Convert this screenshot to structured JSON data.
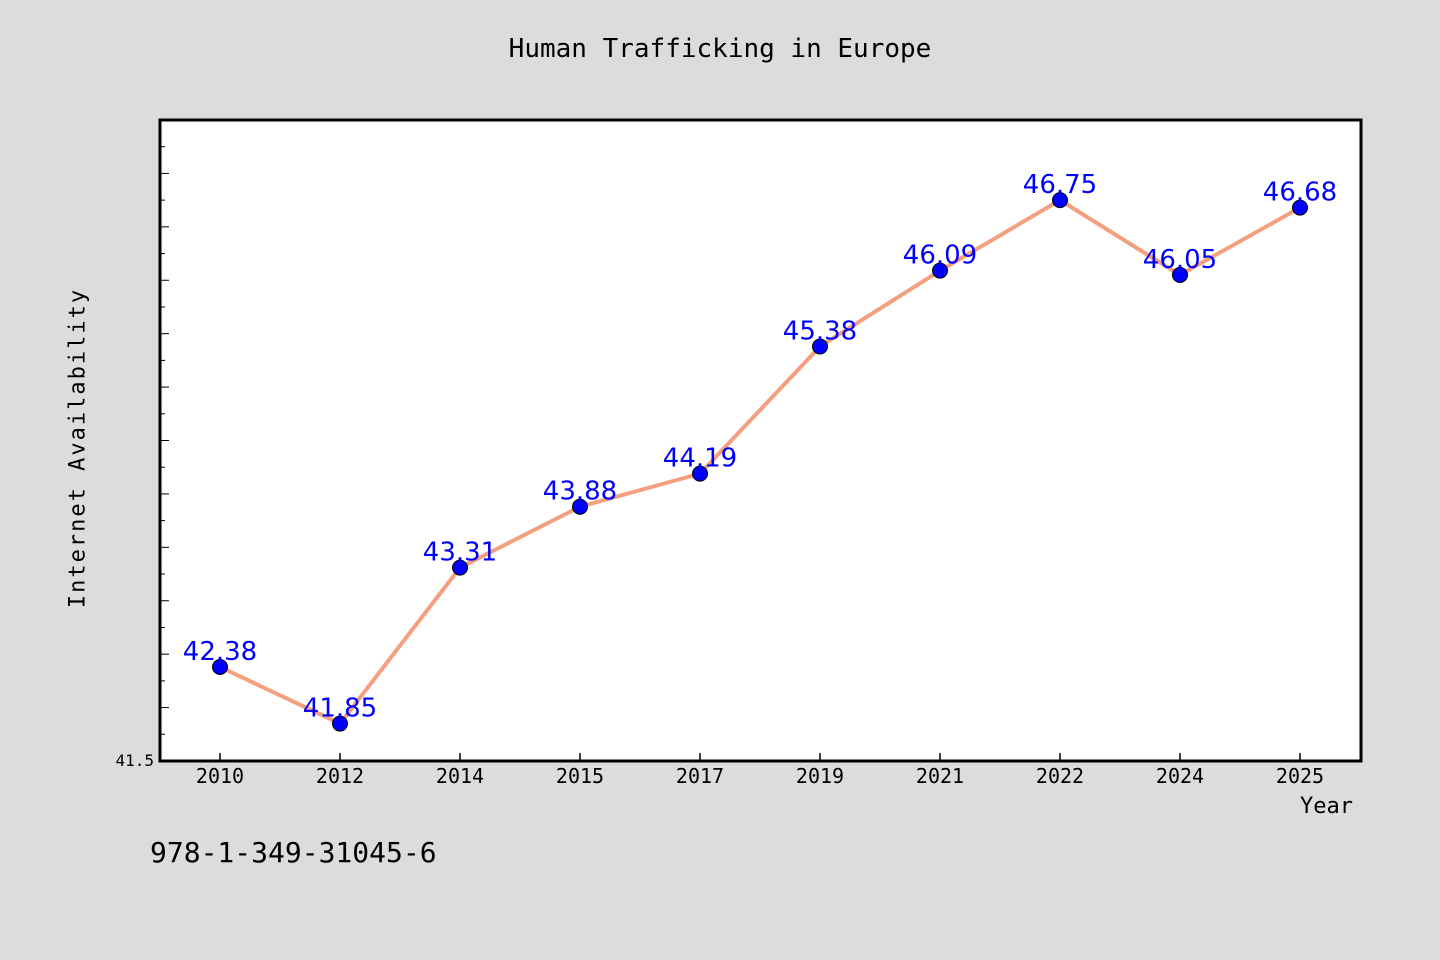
{
  "chart_data": {
    "type": "line",
    "title": "Human Trafficking in Europe",
    "xlabel": "Year",
    "ylabel": "Internet Availability",
    "categories": [
      "2010",
      "2012",
      "2014",
      "2015",
      "2017",
      "2019",
      "2021",
      "2022",
      "2024",
      "2025"
    ],
    "series": [
      {
        "values": [
          42.38,
          41.85,
          43.31,
          43.88,
          44.19,
          45.38,
          46.09,
          46.75,
          46.05,
          46.68
        ],
        "data_labels": [
          "42.38",
          "41.85",
          "43.31",
          "43.88",
          "44.19",
          "45.38",
          "46.09",
          "46.75",
          "46.05",
          "46.68"
        ]
      }
    ],
    "ylim": [
      41.5,
      47.5
    ],
    "y_tick_labels": [
      "41.5"
    ],
    "grid": false,
    "legend": "none",
    "colors": {
      "line": "#f4a07e",
      "marker": "#0000ff",
      "data_label": "#0000ff",
      "plot_background": "#ffffff",
      "page_background": "#dcdcdc"
    }
  },
  "footer_text": "978-1-349-31045-6"
}
